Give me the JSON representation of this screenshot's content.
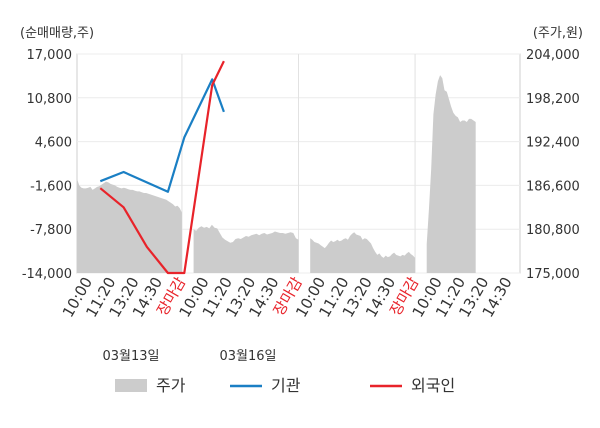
{
  "chart_data": {
    "type": "line",
    "left_axis_unit": "(순매매량,주)",
    "right_axis_unit": "(주가,원)",
    "left_ticks": [
      "17,000",
      "10,800",
      "4,600",
      "-1,600",
      "-7,800",
      "-14,000"
    ],
    "right_ticks": [
      "204,000",
      "198,200",
      "192,400",
      "186,600",
      "180,800",
      "175,000"
    ],
    "ylim_left": [
      -14000,
      17000
    ],
    "ylim_right": [
      175000,
      204000
    ],
    "x_ticks": [
      {
        "label": "10:00",
        "red": false
      },
      {
        "label": "11:20",
        "red": false
      },
      {
        "label": "13:20",
        "red": false
      },
      {
        "label": "14:30",
        "red": false
      },
      {
        "label": "장마감",
        "red": true
      },
      {
        "label": "10:00",
        "red": false
      },
      {
        "label": "11:20",
        "red": false
      },
      {
        "label": "13:20",
        "red": false
      },
      {
        "label": "14:30",
        "red": false
      },
      {
        "label": "장마감",
        "red": true
      },
      {
        "label": "10:00",
        "red": false
      },
      {
        "label": "11:20",
        "red": false
      },
      {
        "label": "13:20",
        "red": false
      },
      {
        "label": "14:30",
        "red": false
      },
      {
        "label": "장마감",
        "red": true
      },
      {
        "label": "10:00",
        "red": false
      },
      {
        "label": "11:20",
        "red": false
      },
      {
        "label": "13:20",
        "red": false
      },
      {
        "label": "14:30",
        "red": false
      }
    ],
    "dates": [
      "03월13일",
      "03월16일"
    ],
    "series": [
      {
        "name": "주가",
        "kind": "area",
        "color": "#cccccc",
        "day1": [
          187500,
          186600,
          186300,
          186200,
          186200,
          186300,
          186400,
          186000,
          186200,
          186400,
          186500,
          186700,
          186900,
          187100,
          187000,
          186800,
          186700,
          186600,
          186400,
          186300,
          186200,
          186300,
          186200,
          186100,
          186000,
          186000,
          185900,
          185800,
          185800,
          185700,
          185600,
          185600,
          185500,
          185400,
          185300,
          185200,
          185100,
          185000,
          184900,
          184800,
          184700,
          184500,
          184300,
          184100,
          183800,
          183900,
          183600,
          183000
        ],
        "day2": [
          180800,
          180600,
          181000,
          181200,
          181000,
          181100,
          180900,
          181400,
          181000,
          180900,
          180300,
          179700,
          179400,
          179200,
          179000,
          179100,
          179500,
          179600,
          179500,
          179700,
          179900,
          179800,
          180000,
          180100,
          180200,
          180000,
          180200,
          180300,
          180100,
          180200,
          180300,
          180500,
          180400,
          180300,
          180300,
          180200,
          180300,
          180400,
          180300,
          179600,
          179400
        ],
        "day3": [
          179600,
          179400,
          179100,
          179000,
          178900,
          178700,
          178500,
          178300,
          178600,
          179000,
          179300,
          179100,
          179200,
          179400,
          179200,
          179300,
          179500,
          179600,
          179400,
          179900,
          180200,
          180400,
          180100,
          180000,
          179900,
          179400,
          179600,
          179500,
          179200,
          178900,
          178300,
          177800,
          177400,
          177600,
          177200,
          177000,
          177300,
          177100,
          177200,
          177500,
          177700,
          177400,
          177300,
          177200,
          177400,
          177300,
          177600,
          177800,
          177500,
          177300,
          177000
        ],
        "day4": [
          178800,
          183600,
          188800,
          196000,
          198600,
          200400,
          201200,
          200800,
          199200,
          199000,
          198000,
          197000,
          196200,
          195800,
          195600,
          195000,
          195200,
          195200,
          195000,
          195400,
          195400,
          195200,
          195000
        ]
      },
      {
        "name": "기관",
        "kind": "line",
        "color": "#1a7fc4",
        "x": [
          0.0,
          1.0,
          2.9,
          3.6,
          4.8,
          5.3
        ],
        "y": [
          -1000,
          300,
          -2500,
          5200,
          13400,
          8800
        ]
      },
      {
        "name": "외국인",
        "kind": "line",
        "color": "#e8232a",
        "x": [
          0.0,
          1.0,
          2.0,
          2.9,
          3.6,
          4.8,
          5.3
        ],
        "y": [
          -2000,
          -4700,
          -10300,
          -14000,
          -14000,
          12600,
          16000
        ]
      }
    ],
    "legend": [
      {
        "label": "주가",
        "kind": "area",
        "color": "#cccccc"
      },
      {
        "label": "기관",
        "kind": "line",
        "color": "#1a7fc4"
      },
      {
        "label": "외국인",
        "kind": "line",
        "color": "#e8232a"
      }
    ],
    "grid": true,
    "legend_position": "bottom"
  }
}
